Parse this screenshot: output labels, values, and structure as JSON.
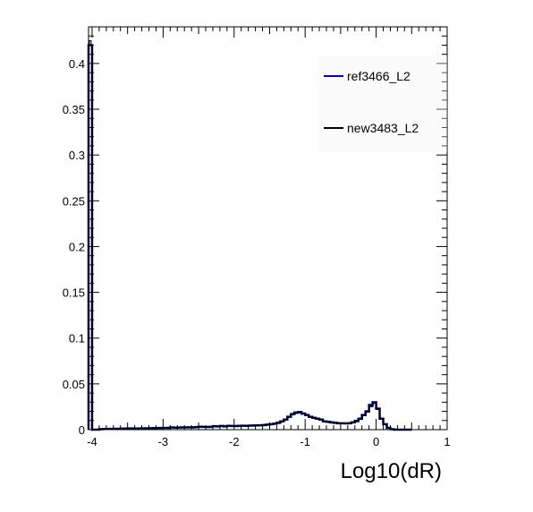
{
  "chart_data": {
    "type": "histogram",
    "title": "",
    "xlabel": "Log10(dR)",
    "ylabel": "",
    "xlim": [
      -4.05,
      1.0
    ],
    "ylim": [
      0,
      0.44
    ],
    "xticks": [
      -4,
      -3,
      -2,
      -1,
      0,
      1
    ],
    "xtick_labels": [
      "-4",
      "-3",
      "-2",
      "-1",
      "0",
      "1"
    ],
    "yticks": [
      0,
      0.05,
      0.1,
      0.15,
      0.2,
      0.25,
      0.3,
      0.35,
      0.4
    ],
    "ytick_labels": [
      "0",
      "0.05",
      "0.1",
      "0.15",
      "0.2",
      "0.25",
      "0.3",
      "0.35",
      "0.4"
    ],
    "grid": false,
    "legend_position": "top-right",
    "bin_width": 0.05,
    "first_bin_left": -4.05,
    "colors": {
      "ref": "#0000cc",
      "new": "#000000"
    },
    "series": [
      {
        "name": "ref3466_L2",
        "values": [
          0.42,
          0.0,
          0.0,
          0.0005,
          0.0007,
          0.0008,
          0.0009,
          0.001,
          0.001,
          0.0011,
          0.0012,
          0.0013,
          0.0013,
          0.0012,
          0.0014,
          0.0015,
          0.0015,
          0.0016,
          0.0017,
          0.0018,
          0.0018,
          0.0019,
          0.002,
          0.0025,
          0.0022,
          0.0023,
          0.0025,
          0.0024,
          0.0026,
          0.0025,
          0.0028,
          0.0032,
          0.003,
          0.0029,
          0.0031,
          0.0038,
          0.0035,
          0.004,
          0.0036,
          0.0042,
          0.004,
          0.0039,
          0.0042,
          0.0043,
          0.0041,
          0.0044,
          0.0045,
          0.0046,
          0.0048,
          0.005,
          0.0055,
          0.006,
          0.0065,
          0.0075,
          0.009,
          0.011,
          0.014,
          0.017,
          0.0185,
          0.019,
          0.0175,
          0.016,
          0.014,
          0.013,
          0.012,
          0.011,
          0.009,
          0.0085,
          0.008,
          0.0075,
          0.007,
          0.007,
          0.0068,
          0.007,
          0.008,
          0.0095,
          0.012,
          0.016,
          0.02,
          0.027,
          0.03,
          0.023,
          0.012,
          0.006,
          0.002,
          0.0005,
          0.0,
          0.0,
          0.0,
          0.0,
          0.0
        ]
      },
      {
        "name": "new3483_L2",
        "values": [
          0.42,
          0.0,
          0.0,
          0.0005,
          0.0007,
          0.0008,
          0.0009,
          0.001,
          0.001,
          0.0011,
          0.0012,
          0.0013,
          0.0013,
          0.0012,
          0.0014,
          0.0015,
          0.0015,
          0.0016,
          0.0017,
          0.0018,
          0.0018,
          0.0019,
          0.002,
          0.0025,
          0.0022,
          0.0023,
          0.0025,
          0.0024,
          0.0026,
          0.0025,
          0.0028,
          0.0032,
          0.003,
          0.0029,
          0.0031,
          0.0038,
          0.0035,
          0.004,
          0.0036,
          0.0042,
          0.004,
          0.0039,
          0.0042,
          0.0043,
          0.0041,
          0.0044,
          0.0045,
          0.0046,
          0.0048,
          0.005,
          0.0055,
          0.006,
          0.0065,
          0.0075,
          0.009,
          0.011,
          0.014,
          0.017,
          0.019,
          0.0195,
          0.018,
          0.016,
          0.014,
          0.013,
          0.012,
          0.011,
          0.009,
          0.0085,
          0.008,
          0.0075,
          0.007,
          0.007,
          0.0068,
          0.007,
          0.008,
          0.009,
          0.0115,
          0.0155,
          0.0195,
          0.0255,
          0.029,
          0.0225,
          0.012,
          0.006,
          0.002,
          0.0005,
          0.0,
          0.0,
          0.0,
          0.0,
          0.0
        ]
      }
    ]
  }
}
